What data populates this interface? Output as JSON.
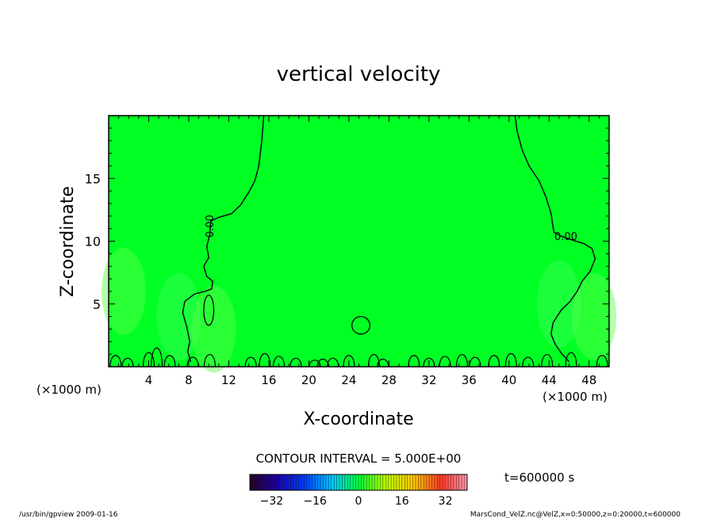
{
  "chart_data": {
    "type": "heatmap",
    "title": "vertical velocity",
    "xlabel": "X-coordinate",
    "ylabel": "Z-coordinate",
    "x_unit_label": "(×1000 m)",
    "x_unit_label_right": "(×1000 m)",
    "xlim": [
      0,
      50
    ],
    "ylim": [
      0,
      20
    ],
    "x_ticks": [
      4,
      8,
      12,
      16,
      20,
      24,
      28,
      32,
      36,
      40,
      44,
      48
    ],
    "y_ticks": [
      5,
      10,
      15
    ],
    "background_color": "#00ff23",
    "contour_line_label_left": "0.00",
    "contour_line_label_right": "0.00",
    "contour_interval_text": "CONTOUR INTERVAL = 5.000E+00",
    "time_text": "t=600000 s",
    "colorbar": {
      "range": [
        -40,
        40
      ],
      "ticks": [
        -32,
        -16,
        0,
        16,
        32
      ],
      "n_bins": 80
    },
    "zero_contours": [
      {
        "x": [
          15.5,
          15.3,
          15.0,
          14.6,
          14.0,
          13.2,
          12.3,
          11.0,
          10.2,
          10.1,
          9.8,
          10.0,
          9.5,
          9.8,
          10.4,
          10.3,
          9.6,
          8.6,
          7.6,
          7.4,
          7.8,
          8.1,
          7.9,
          8.2
        ],
        "y": [
          20,
          18,
          16,
          14.8,
          13.9,
          12.9,
          12.2,
          11.9,
          11.6,
          10.5,
          9.6,
          8.7,
          8.0,
          7.2,
          6.8,
          6.2,
          6.0,
          5.8,
          5.2,
          4.3,
          3.2,
          2.0,
          1.2,
          0.4
        ]
      },
      {
        "x": [
          40.6,
          40.8,
          41.3,
          42.0,
          43.0,
          43.7,
          44.2,
          44.4,
          44.5,
          45.2,
          46.3,
          47.5,
          48.3,
          48.6,
          48.1,
          47.3,
          46.8,
          46.1,
          45.2,
          44.4,
          44.2,
          44.6,
          45.3,
          46.0
        ],
        "y": [
          20,
          18.8,
          17.3,
          16.0,
          14.8,
          13.5,
          12.2,
          11.1,
          10.7,
          10.4,
          10.1,
          9.8,
          9.4,
          8.6,
          7.6,
          6.8,
          6.0,
          5.2,
          4.5,
          3.5,
          2.6,
          1.8,
          1.0,
          0.4
        ]
      }
    ],
    "isolated_contours": [
      {
        "center": [
          10.0,
          4.5
        ],
        "radius": [
          0.5,
          1.2
        ]
      },
      {
        "center": [
          25.2,
          3.3
        ],
        "radius": [
          0.9,
          0.7
        ]
      }
    ]
  },
  "footer": {
    "left": "/usr/bin/gpview  2009-01-16",
    "right": "MarsCond_VelZ.nc@VelZ,x=0:50000,z=0:20000,t=600000"
  }
}
